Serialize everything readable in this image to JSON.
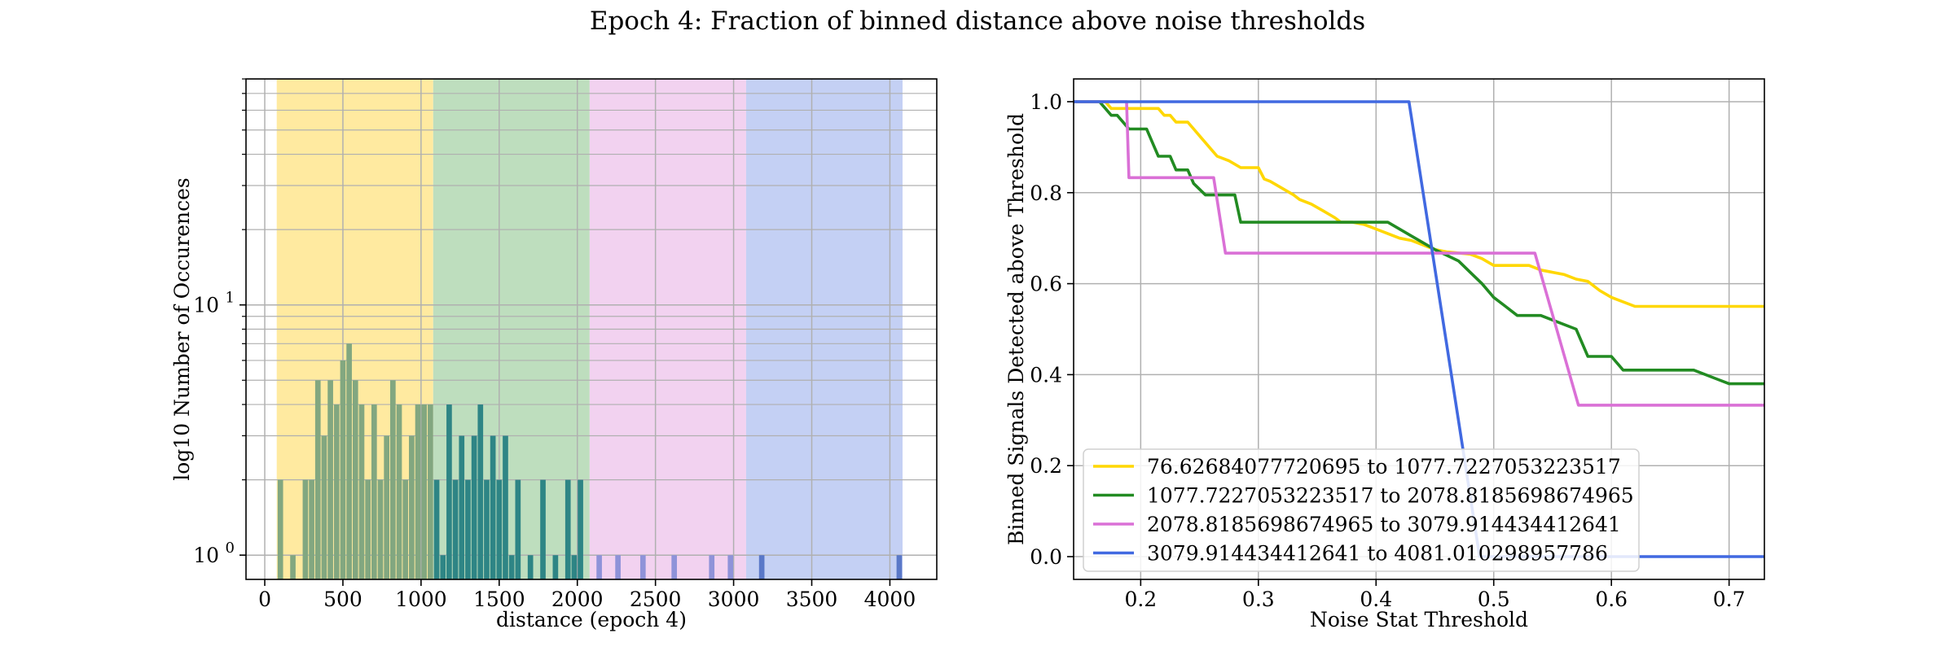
{
  "figure_title": "Epoch 4: Fraction of binned distance above noise thresholds",
  "chart_data": [
    {
      "type": "bar",
      "subtype": "histogram",
      "yscale": "log",
      "xlabel": "distance (epoch 4)",
      "ylabel": "log10 Number of Occurences",
      "xlim": [
        -120,
        4300
      ],
      "ylim": [
        0.8,
        80
      ],
      "xticks": [
        0,
        500,
        1000,
        1500,
        2000,
        2500,
        3000,
        3500,
        4000
      ],
      "yticks": [
        {
          "value": 1,
          "label": "10",
          "exp": "0"
        },
        {
          "value": 10,
          "label": "10",
          "exp": "1"
        }
      ],
      "grid": true,
      "bands": [
        {
          "from": 76.62684077720695,
          "to": 1077.7227053223517,
          "color": "#FFEAA0"
        },
        {
          "from": 1077.7227053223517,
          "to": 2078.8185698674965,
          "color": "#BEDEBE"
        },
        {
          "from": 2078.8185698674965,
          "to": 3079.914434412641,
          "color": "#F2D2F0"
        },
        {
          "from": 3079.914434412641,
          "to": 4081.010298957786,
          "color": "#C4D0F4"
        }
      ],
      "bin_width": 40,
      "bins": [
        {
          "x": 80,
          "count": 2
        },
        {
          "x": 160,
          "count": 1
        },
        {
          "x": 240,
          "count": 2
        },
        {
          "x": 280,
          "count": 2
        },
        {
          "x": 320,
          "count": 5
        },
        {
          "x": 360,
          "count": 3
        },
        {
          "x": 400,
          "count": 5
        },
        {
          "x": 440,
          "count": 4
        },
        {
          "x": 480,
          "count": 6
        },
        {
          "x": 520,
          "count": 7
        },
        {
          "x": 560,
          "count": 5
        },
        {
          "x": 600,
          "count": 4
        },
        {
          "x": 640,
          "count": 2
        },
        {
          "x": 680,
          "count": 4
        },
        {
          "x": 720,
          "count": 2
        },
        {
          "x": 760,
          "count": 3
        },
        {
          "x": 800,
          "count": 5
        },
        {
          "x": 840,
          "count": 4
        },
        {
          "x": 880,
          "count": 2
        },
        {
          "x": 920,
          "count": 3
        },
        {
          "x": 960,
          "count": 4
        },
        {
          "x": 1000,
          "count": 4
        },
        {
          "x": 1040,
          "count": 4
        },
        {
          "x": 1080,
          "count": 2
        },
        {
          "x": 1120,
          "count": 1
        },
        {
          "x": 1160,
          "count": 4
        },
        {
          "x": 1200,
          "count": 2
        },
        {
          "x": 1240,
          "count": 3
        },
        {
          "x": 1280,
          "count": 2
        },
        {
          "x": 1320,
          "count": 3
        },
        {
          "x": 1360,
          "count": 4
        },
        {
          "x": 1400,
          "count": 2
        },
        {
          "x": 1440,
          "count": 3
        },
        {
          "x": 1480,
          "count": 2
        },
        {
          "x": 1520,
          "count": 3
        },
        {
          "x": 1560,
          "count": 1
        },
        {
          "x": 1600,
          "count": 2
        },
        {
          "x": 1680,
          "count": 1
        },
        {
          "x": 1760,
          "count": 2
        },
        {
          "x": 1840,
          "count": 1
        },
        {
          "x": 1920,
          "count": 2
        },
        {
          "x": 1960,
          "count": 1
        },
        {
          "x": 2000,
          "count": 2
        },
        {
          "x": 2120,
          "count": 1
        },
        {
          "x": 2240,
          "count": 1
        },
        {
          "x": 2400,
          "count": 1
        },
        {
          "x": 2600,
          "count": 1
        },
        {
          "x": 2840,
          "count": 1
        },
        {
          "x": 2960,
          "count": 1
        },
        {
          "x": 3160,
          "count": 1
        },
        {
          "x": 4040,
          "count": 1
        }
      ]
    },
    {
      "type": "line",
      "xlabel": "Noise Stat Threshold",
      "ylabel": "Binned Signals Detected above Threshold",
      "xlim": [
        0.143,
        0.73
      ],
      "ylim": [
        -0.05,
        1.05
      ],
      "xticks": [
        0.2,
        0.3,
        0.4,
        0.5,
        0.6,
        0.7
      ],
      "yticks": [
        0.0,
        0.2,
        0.4,
        0.6,
        0.8,
        1.0
      ],
      "grid": true,
      "legend_position": "lower-left",
      "series": [
        {
          "name": "76.62684077720695 to 1077.7227053223517",
          "color": "#FFD700",
          "points": [
            [
              0.143,
              1.0
            ],
            [
              0.17,
              1.0
            ],
            [
              0.175,
              0.985
            ],
            [
              0.215,
              0.985
            ],
            [
              0.22,
              0.97
            ],
            [
              0.225,
              0.97
            ],
            [
              0.23,
              0.955
            ],
            [
              0.24,
              0.955
            ],
            [
              0.245,
              0.94
            ],
            [
              0.25,
              0.925
            ],
            [
              0.255,
              0.91
            ],
            [
              0.26,
              0.895
            ],
            [
              0.265,
              0.88
            ],
            [
              0.275,
              0.87
            ],
            [
              0.285,
              0.855
            ],
            [
              0.3,
              0.855
            ],
            [
              0.305,
              0.83
            ],
            [
              0.31,
              0.825
            ],
            [
              0.32,
              0.81
            ],
            [
              0.33,
              0.795
            ],
            [
              0.335,
              0.785
            ],
            [
              0.345,
              0.775
            ],
            [
              0.355,
              0.76
            ],
            [
              0.365,
              0.745
            ],
            [
              0.37,
              0.735
            ],
            [
              0.38,
              0.735
            ],
            [
              0.39,
              0.73
            ],
            [
              0.4,
              0.72
            ],
            [
              0.41,
              0.71
            ],
            [
              0.42,
              0.7
            ],
            [
              0.43,
              0.695
            ],
            [
              0.44,
              0.685
            ],
            [
              0.45,
              0.675
            ],
            [
              0.46,
              0.67
            ],
            [
              0.48,
              0.665
            ],
            [
              0.49,
              0.655
            ],
            [
              0.5,
              0.64
            ],
            [
              0.53,
              0.64
            ],
            [
              0.54,
              0.63
            ],
            [
              0.56,
              0.62
            ],
            [
              0.57,
              0.61
            ],
            [
              0.58,
              0.605
            ],
            [
              0.59,
              0.585
            ],
            [
              0.6,
              0.57
            ],
            [
              0.62,
              0.55
            ],
            [
              0.73,
              0.55
            ]
          ]
        },
        {
          "name": "1077.7227053223517 to 2078.8185698674965",
          "color": "#228B22",
          "points": [
            [
              0.143,
              1.0
            ],
            [
              0.165,
              1.0
            ],
            [
              0.17,
              0.985
            ],
            [
              0.175,
              0.97
            ],
            [
              0.18,
              0.97
            ],
            [
              0.185,
              0.955
            ],
            [
              0.19,
              0.94
            ],
            [
              0.205,
              0.94
            ],
            [
              0.21,
              0.91
            ],
            [
              0.215,
              0.88
            ],
            [
              0.225,
              0.88
            ],
            [
              0.23,
              0.85
            ],
            [
              0.24,
              0.85
            ],
            [
              0.245,
              0.82
            ],
            [
              0.255,
              0.795
            ],
            [
              0.28,
              0.795
            ],
            [
              0.285,
              0.735
            ],
            [
              0.41,
              0.735
            ],
            [
              0.43,
              0.705
            ],
            [
              0.45,
              0.675
            ],
            [
              0.47,
              0.65
            ],
            [
              0.48,
              0.625
            ],
            [
              0.49,
              0.6
            ],
            [
              0.5,
              0.57
            ],
            [
              0.51,
              0.55
            ],
            [
              0.52,
              0.53
            ],
            [
              0.54,
              0.53
            ],
            [
              0.57,
              0.5
            ],
            [
              0.58,
              0.44
            ],
            [
              0.6,
              0.44
            ],
            [
              0.61,
              0.41
            ],
            [
              0.67,
              0.41
            ],
            [
              0.69,
              0.39
            ],
            [
              0.7,
              0.38
            ],
            [
              0.73,
              0.38
            ]
          ]
        },
        {
          "name": "2078.8185698674965 to 3079.914434412641",
          "color": "#DA70D6",
          "points": [
            [
              0.143,
              1.0
            ],
            [
              0.188,
              1.0
            ],
            [
              0.19,
              0.833
            ],
            [
              0.262,
              0.833
            ],
            [
              0.272,
              0.667
            ],
            [
              0.535,
              0.667
            ],
            [
              0.572,
              0.333
            ],
            [
              0.73,
              0.333
            ]
          ]
        },
        {
          "name": "3079.914434412641 to 4081.010298957786",
          "color": "#4169E1",
          "points": [
            [
              0.143,
              1.0
            ],
            [
              0.428,
              1.0
            ],
            [
              0.488,
              0.0
            ],
            [
              0.73,
              0.0
            ]
          ]
        }
      ]
    }
  ]
}
